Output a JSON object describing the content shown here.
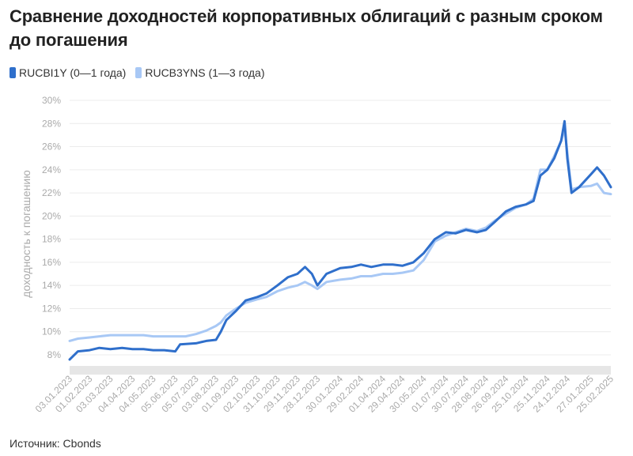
{
  "chart_data": {
    "type": "line",
    "title": "Сравнение доходностей корпоративных облигаций с разным сроком до погашения",
    "ylabel": "доходность к погашению",
    "xlabel": "",
    "ylim": [
      7,
      30
    ],
    "y_ticks": [
      "8%",
      "10%",
      "12%",
      "14%",
      "16%",
      "18%",
      "20%",
      "22%",
      "24%",
      "26%",
      "28%",
      "30%"
    ],
    "x_ticks": [
      "03.01.2023",
      "01.02.2023",
      "03.03.2023",
      "04.04.2023",
      "04.05.2023",
      "05.06.2023",
      "05.07.2023",
      "03.08.2023",
      "01.09.2023",
      "02.10.2023",
      "31.10.2023",
      "29.11.2023",
      "28.12.2023",
      "30.01.2024",
      "29.02.2024",
      "01.04.2024",
      "29.04.2024",
      "30.05.2024",
      "01.07.2024",
      "30.07.2024",
      "28.08.2024",
      "26.09.2024",
      "25.10.2024",
      "25.11.2024",
      "24.12.2024",
      "27.01.2025",
      "25.02.2025"
    ],
    "legend_position": "top-left",
    "grid": true,
    "series": [
      {
        "name": "RUCBI1Y (0—1 года)",
        "color": "#2f6fcb",
        "points": [
          [
            "03.01.2023",
            7.6
          ],
          [
            "15.01.2023",
            8.3
          ],
          [
            "01.02.2023",
            8.4
          ],
          [
            "15.02.2023",
            8.6
          ],
          [
            "03.03.2023",
            8.5
          ],
          [
            "20.03.2023",
            8.6
          ],
          [
            "04.04.2023",
            8.5
          ],
          [
            "20.04.2023",
            8.5
          ],
          [
            "04.05.2023",
            8.4
          ],
          [
            "20.05.2023",
            8.4
          ],
          [
            "05.06.2023",
            8.3
          ],
          [
            "12.06.2023",
            8.9
          ],
          [
            "05.07.2023",
            9.0
          ],
          [
            "20.07.2023",
            9.2
          ],
          [
            "03.08.2023",
            9.3
          ],
          [
            "10.08.2023",
            10.0
          ],
          [
            "18.08.2023",
            11.0
          ],
          [
            "01.09.2023",
            11.8
          ],
          [
            "15.09.2023",
            12.7
          ],
          [
            "02.10.2023",
            13.0
          ],
          [
            "15.10.2023",
            13.3
          ],
          [
            "31.10.2023",
            14.0
          ],
          [
            "15.11.2023",
            14.7
          ],
          [
            "29.11.2023",
            15.0
          ],
          [
            "10.12.2023",
            15.6
          ],
          [
            "20.12.2023",
            15.0
          ],
          [
            "28.12.2023",
            14.0
          ],
          [
            "10.01.2024",
            15.0
          ],
          [
            "30.01.2024",
            15.5
          ],
          [
            "15.02.2024",
            15.6
          ],
          [
            "29.02.2024",
            15.8
          ],
          [
            "15.03.2024",
            15.6
          ],
          [
            "01.04.2024",
            15.8
          ],
          [
            "15.04.2024",
            15.8
          ],
          [
            "29.04.2024",
            15.7
          ],
          [
            "15.05.2024",
            16.0
          ],
          [
            "30.05.2024",
            16.8
          ],
          [
            "15.06.2024",
            18.0
          ],
          [
            "01.07.2024",
            18.6
          ],
          [
            "15.07.2024",
            18.5
          ],
          [
            "30.07.2024",
            18.8
          ],
          [
            "15.08.2024",
            18.6
          ],
          [
            "28.08.2024",
            18.8
          ],
          [
            "10.09.2024",
            19.5
          ],
          [
            "26.09.2024",
            20.4
          ],
          [
            "10.10.2024",
            20.8
          ],
          [
            "25.10.2024",
            21.0
          ],
          [
            "05.11.2024",
            21.3
          ],
          [
            "15.11.2024",
            23.5
          ],
          [
            "25.11.2024",
            24.0
          ],
          [
            "05.12.2024",
            25.0
          ],
          [
            "15.12.2024",
            26.5
          ],
          [
            "20.12.2024",
            28.2
          ],
          [
            "24.12.2024",
            25.0
          ],
          [
            "30.12.2024",
            22.0
          ],
          [
            "10.01.2025",
            22.5
          ],
          [
            "27.01.2025",
            23.6
          ],
          [
            "05.02.2025",
            24.2
          ],
          [
            "15.02.2025",
            23.5
          ],
          [
            "25.02.2025",
            22.5
          ]
        ]
      },
      {
        "name": "RUCB3YNS (1—3 года)",
        "color": "#a8c8f5",
        "points": [
          [
            "03.01.2023",
            9.2
          ],
          [
            "15.01.2023",
            9.4
          ],
          [
            "01.02.2023",
            9.5
          ],
          [
            "15.02.2023",
            9.6
          ],
          [
            "03.03.2023",
            9.7
          ],
          [
            "20.03.2023",
            9.7
          ],
          [
            "04.04.2023",
            9.7
          ],
          [
            "20.04.2023",
            9.7
          ],
          [
            "04.05.2023",
            9.6
          ],
          [
            "20.05.2023",
            9.6
          ],
          [
            "05.06.2023",
            9.6
          ],
          [
            "20.06.2023",
            9.6
          ],
          [
            "05.07.2023",
            9.8
          ],
          [
            "20.07.2023",
            10.1
          ],
          [
            "03.08.2023",
            10.5
          ],
          [
            "10.08.2023",
            10.8
          ],
          [
            "18.08.2023",
            11.4
          ],
          [
            "01.09.2023",
            12.0
          ],
          [
            "15.09.2023",
            12.5
          ],
          [
            "02.10.2023",
            12.8
          ],
          [
            "15.10.2023",
            13.0
          ],
          [
            "31.10.2023",
            13.5
          ],
          [
            "15.11.2023",
            13.8
          ],
          [
            "29.11.2023",
            14.0
          ],
          [
            "10.12.2023",
            14.3
          ],
          [
            "20.12.2023",
            14.0
          ],
          [
            "28.12.2023",
            13.7
          ],
          [
            "10.01.2024",
            14.3
          ],
          [
            "30.01.2024",
            14.5
          ],
          [
            "15.02.2024",
            14.6
          ],
          [
            "29.02.2024",
            14.8
          ],
          [
            "15.03.2024",
            14.8
          ],
          [
            "01.04.2024",
            15.0
          ],
          [
            "15.04.2024",
            15.0
          ],
          [
            "29.04.2024",
            15.1
          ],
          [
            "15.05.2024",
            15.3
          ],
          [
            "30.05.2024",
            16.2
          ],
          [
            "15.06.2024",
            17.8
          ],
          [
            "01.07.2024",
            18.3
          ],
          [
            "15.07.2024",
            18.6
          ],
          [
            "30.07.2024",
            18.9
          ],
          [
            "15.08.2024",
            18.7
          ],
          [
            "28.08.2024",
            19.0
          ],
          [
            "10.09.2024",
            19.6
          ],
          [
            "26.09.2024",
            20.2
          ],
          [
            "10.10.2024",
            20.7
          ],
          [
            "25.10.2024",
            21.0
          ],
          [
            "05.11.2024",
            21.5
          ],
          [
            "15.11.2024",
            24.0
          ],
          [
            "25.11.2024",
            24.0
          ],
          [
            "05.12.2024",
            25.2
          ],
          [
            "15.12.2024",
            26.5
          ],
          [
            "20.12.2024",
            27.5
          ],
          [
            "24.12.2024",
            25.5
          ],
          [
            "30.12.2024",
            22.3
          ],
          [
            "10.01.2025",
            22.5
          ],
          [
            "27.01.2025",
            22.6
          ],
          [
            "05.02.2025",
            22.8
          ],
          [
            "15.02.2025",
            22.0
          ],
          [
            "25.02.2025",
            21.9
          ]
        ]
      }
    ]
  },
  "legend": {
    "series1_label": "RUCBI1Y (0—1 года)",
    "series2_label": "RUCB3YNS (1—3 года)",
    "series1_color": "#2f6fcb",
    "series2_color": "#a8c8f5"
  },
  "source": "Источник: Cbonds"
}
